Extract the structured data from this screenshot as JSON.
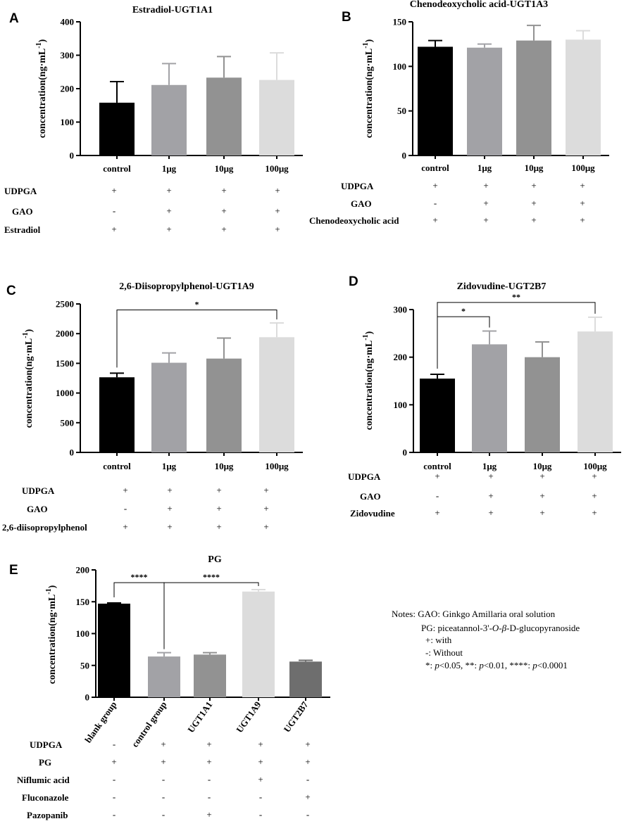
{
  "chart_data": [
    {
      "panel": "A",
      "type": "bar",
      "title": "Estradiol-UGT1A1",
      "ylabel": "concentration(ng·mL-1)",
      "ylim": [
        0,
        400
      ],
      "yticks": [
        0,
        100,
        200,
        300,
        400
      ],
      "categories": [
        "control",
        "1μg",
        "10μg",
        "100μg"
      ],
      "values": [
        158,
        211,
        233,
        226
      ],
      "errors": [
        63,
        64,
        63,
        81
      ],
      "colors": [
        "#000000",
        "#a2a2a6",
        "#929292",
        "#dcdcdc"
      ],
      "significance": [],
      "conditions": [
        {
          "label": "UDPGA",
          "marks": [
            "+",
            "+",
            "+",
            "+"
          ]
        },
        {
          "label": "GAO",
          "marks": [
            "-",
            "+",
            "+",
            "+"
          ]
        },
        {
          "label": "Estradiol",
          "marks": [
            "+",
            "+",
            "+",
            "+"
          ]
        }
      ]
    },
    {
      "panel": "B",
      "type": "bar",
      "title": "Chenodeoxycholic acid-UGT1A3",
      "ylabel": "concentration(ng·mL-1)",
      "ylim": [
        0,
        150
      ],
      "yticks": [
        0,
        50,
        100,
        150
      ],
      "categories": [
        "control",
        "1μg",
        "10μg",
        "100μg"
      ],
      "values": [
        122,
        121,
        129,
        130
      ],
      "errors": [
        7,
        4,
        17,
        10
      ],
      "colors": [
        "#000000",
        "#a2a2a6",
        "#929292",
        "#dcdcdc"
      ],
      "significance": [],
      "conditions": [
        {
          "label": "UDPGA",
          "marks": [
            "+",
            "+",
            "+",
            "+"
          ]
        },
        {
          "label": "GAO",
          "marks": [
            "-",
            "+",
            "+",
            "+"
          ]
        },
        {
          "label": "Chenodeoxycholic acid",
          "marks": [
            "+",
            "+",
            "+",
            "+"
          ]
        }
      ]
    },
    {
      "panel": "C",
      "type": "bar",
      "title": "2,6-Diisopropylphenol-UGT1A9",
      "ylabel": "concentration(ng·mL-1)",
      "ylim": [
        0,
        2500
      ],
      "yticks": [
        0,
        500,
        1000,
        1500,
        2000,
        2500
      ],
      "categories": [
        "control",
        "1μg",
        "10μg",
        "100μg"
      ],
      "values": [
        1265,
        1510,
        1580,
        1940
      ],
      "errors": [
        70,
        165,
        345,
        240
      ],
      "colors": [
        "#000000",
        "#a2a2a6",
        "#929292",
        "#dcdcdc"
      ],
      "significance": [
        {
          "from": 0,
          "to": 3,
          "label": "*",
          "level": 2400
        }
      ],
      "conditions": [
        {
          "label": "UDPGA",
          "marks": [
            "+",
            "+",
            "+",
            "+"
          ]
        },
        {
          "label": "GAO",
          "marks": [
            "-",
            "+",
            "+",
            "+"
          ]
        },
        {
          "label": "2,6-diisopropylphenol",
          "marks": [
            "+",
            "+",
            "+",
            "+"
          ]
        }
      ]
    },
    {
      "panel": "D",
      "type": "bar",
      "title": "Zidovudine-UGT2B7",
      "ylabel": "concentration(ng·mL-1)",
      "ylim": [
        0,
        300
      ],
      "yticks": [
        0,
        100,
        200,
        300
      ],
      "categories": [
        "control",
        "1μg",
        "10μg",
        "100μg"
      ],
      "values": [
        155,
        227,
        200,
        254
      ],
      "errors": [
        9,
        28,
        32,
        30
      ],
      "colors": [
        "#000000",
        "#a2a2a6",
        "#929292",
        "#dcdcdc"
      ],
      "significance": [
        {
          "from": 0,
          "to": 1,
          "label": "*",
          "level": 285
        },
        {
          "from": 0,
          "to": 3,
          "label": "**",
          "level": 315
        }
      ],
      "conditions": [
        {
          "label": "UDPGA",
          "marks": [
            "+",
            "+",
            "+",
            "+"
          ]
        },
        {
          "label": "GAO",
          "marks": [
            "-",
            "+",
            "+",
            "+"
          ]
        },
        {
          "label": "Zidovudine",
          "marks": [
            "+",
            "+",
            "+",
            "+"
          ]
        }
      ]
    },
    {
      "panel": "E",
      "type": "bar",
      "title": "PG",
      "ylabel": "concentration(ng·mL-1)",
      "ylim": [
        0,
        200
      ],
      "yticks": [
        0,
        50,
        100,
        150,
        200
      ],
      "categories": [
        "blank group",
        "control group",
        "UGT1A1",
        "UGT1A9",
        "UGT2B7"
      ],
      "values": [
        147,
        64,
        67,
        166,
        56
      ],
      "errors": [
        1,
        6,
        3,
        3,
        2
      ],
      "colors": [
        "#000000",
        "#a2a2a6",
        "#929292",
        "#dcdcdc",
        "#6e6e6e"
      ],
      "significance": [
        {
          "from": 0,
          "to": 1,
          "label": "****",
          "level": 180
        },
        {
          "from": 1,
          "to": 3,
          "label": "****",
          "level": 180
        }
      ],
      "conditions": [
        {
          "label": "UDPGA",
          "marks": [
            "-",
            "+",
            "+",
            "+",
            "+"
          ]
        },
        {
          "label": "PG",
          "marks": [
            "+",
            "+",
            "+",
            "+",
            "+"
          ]
        },
        {
          "label": "Niflumic acid",
          "marks": [
            "-",
            "-",
            "-",
            "+",
            "-"
          ]
        },
        {
          "label": "Fluconazole",
          "marks": [
            "-",
            "-",
            "-",
            "-",
            "+"
          ]
        },
        {
          "label": "Pazopanib",
          "marks": [
            "-",
            "-",
            "+",
            "-",
            "-"
          ]
        }
      ]
    }
  ],
  "notes": {
    "line1": "Notes: GAO: Ginkgo Amillaria oral solution",
    "line2_prefix": "PG: piceatannol-3'-",
    "line2_o": "O",
    "line2_dash": "-",
    "line2_beta": "β",
    "line2_suffix": "-D-glucopyranoside",
    "line3": "+: with",
    "line4": "-:  Without",
    "line5": "*: p<0.05, **: p<0.01, ****: p<0.0001"
  }
}
